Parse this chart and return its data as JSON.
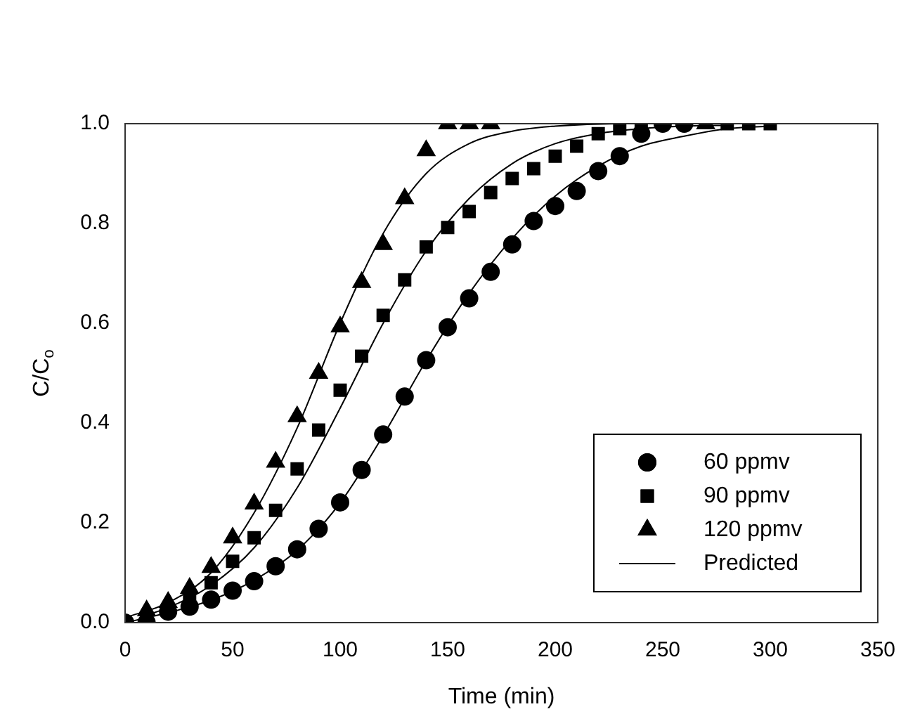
{
  "chart_data": {
    "type": "scatter",
    "xlabel": "Time (min)",
    "ylabel": "C/C$_{o}$",
    "xlim": [
      0,
      350
    ],
    "xticks": [
      0,
      50,
      100,
      150,
      200,
      250,
      300,
      350
    ],
    "ylim": [
      0,
      1
    ],
    "yticks": [
      {
        "value": 0,
        "label": "0.0"
      },
      {
        "value": 0.2,
        "label": "0.2"
      },
      {
        "value": 0.4,
        "label": "0.4"
      },
      {
        "value": 0.6,
        "label": "0.6"
      },
      {
        "value": 0.8,
        "label": "0.8"
      },
      {
        "value": 1,
        "label": "1.0"
      }
    ],
    "grid": false,
    "legend": "bottom right",
    "series": [
      {
        "name": "60 ppmv",
        "color": "#000000",
        "marker": "circle",
        "x": [
          0,
          10,
          20,
          30,
          40,
          50,
          60,
          70,
          80,
          90,
          100,
          110,
          120,
          130,
          140,
          150,
          160,
          170,
          180,
          190,
          200,
          210,
          220,
          230,
          240,
          250,
          260
        ],
        "values": [
          0,
          0,
          0.022,
          0.032,
          0.046,
          0.064,
          0.083,
          0.113,
          0.147,
          0.188,
          0.241,
          0.306,
          0.377,
          0.453,
          0.526,
          0.592,
          0.65,
          0.703,
          0.758,
          0.805,
          0.835,
          0.865,
          0.905,
          0.935,
          0.98,
          1.0,
          1.0
        ]
      },
      {
        "name": "90 ppmv",
        "color": "#000000",
        "marker": "square",
        "x": [
          30,
          40,
          50,
          60,
          70,
          80,
          90,
          100,
          110,
          120,
          130,
          140,
          150,
          160,
          170,
          180,
          190,
          200,
          210,
          220,
          230,
          240,
          280,
          290,
          300
        ],
        "values": [
          0.048,
          0.08,
          0.123,
          0.17,
          0.225,
          0.308,
          0.386,
          0.466,
          0.534,
          0.616,
          0.687,
          0.753,
          0.792,
          0.824,
          0.862,
          0.89,
          0.91,
          0.935,
          0.955,
          0.98,
          0.99,
          1.0,
          1.0,
          1.0,
          1.0
        ]
      },
      {
        "name": "120 ppmv",
        "color": "#000000",
        "marker": "triangle",
        "x": [
          10,
          20,
          30,
          40,
          50,
          60,
          70,
          80,
          90,
          100,
          110,
          120,
          130,
          140,
          150,
          160,
          170,
          270
        ],
        "values": [
          0.024,
          0.041,
          0.069,
          0.111,
          0.17,
          0.238,
          0.322,
          0.413,
          0.5,
          0.593,
          0.682,
          0.758,
          0.85,
          0.946,
          1.0,
          1.0,
          1.0,
          1.0
        ]
      },
      {
        "name": "Predicted",
        "type": "line",
        "color": "#000000",
        "marker": "none",
        "x": [
          0,
          20,
          40,
          60,
          80,
          100,
          120,
          140,
          160,
          180,
          200,
          220,
          240,
          260,
          280,
          300
        ],
        "values": [
          0,
          0.02,
          0.045,
          0.085,
          0.145,
          0.24,
          0.375,
          0.525,
          0.66,
          0.77,
          0.855,
          0.915,
          0.955,
          0.975,
          0.99,
          0.995
        ]
      },
      {
        "type": "line",
        "color": "#000000",
        "marker": "none",
        "x": [
          10,
          20,
          40,
          60,
          80,
          100,
          120,
          140,
          160,
          180,
          200,
          220,
          240,
          260,
          280
        ],
        "values": [
          0.015,
          0.03,
          0.075,
          0.15,
          0.27,
          0.43,
          0.6,
          0.745,
          0.85,
          0.92,
          0.96,
          0.98,
          0.99,
          0.995,
          0.997
        ]
      },
      {
        "type": "line",
        "color": "#000000",
        "marker": "none",
        "x": [
          0,
          20,
          40,
          60,
          80,
          100,
          120,
          140,
          160,
          180,
          200,
          230,
          260
        ],
        "values": [
          0.01,
          0.04,
          0.1,
          0.22,
          0.39,
          0.6,
          0.78,
          0.9,
          0.96,
          0.985,
          0.995,
          1.0,
          1.0
        ]
      }
    ]
  }
}
